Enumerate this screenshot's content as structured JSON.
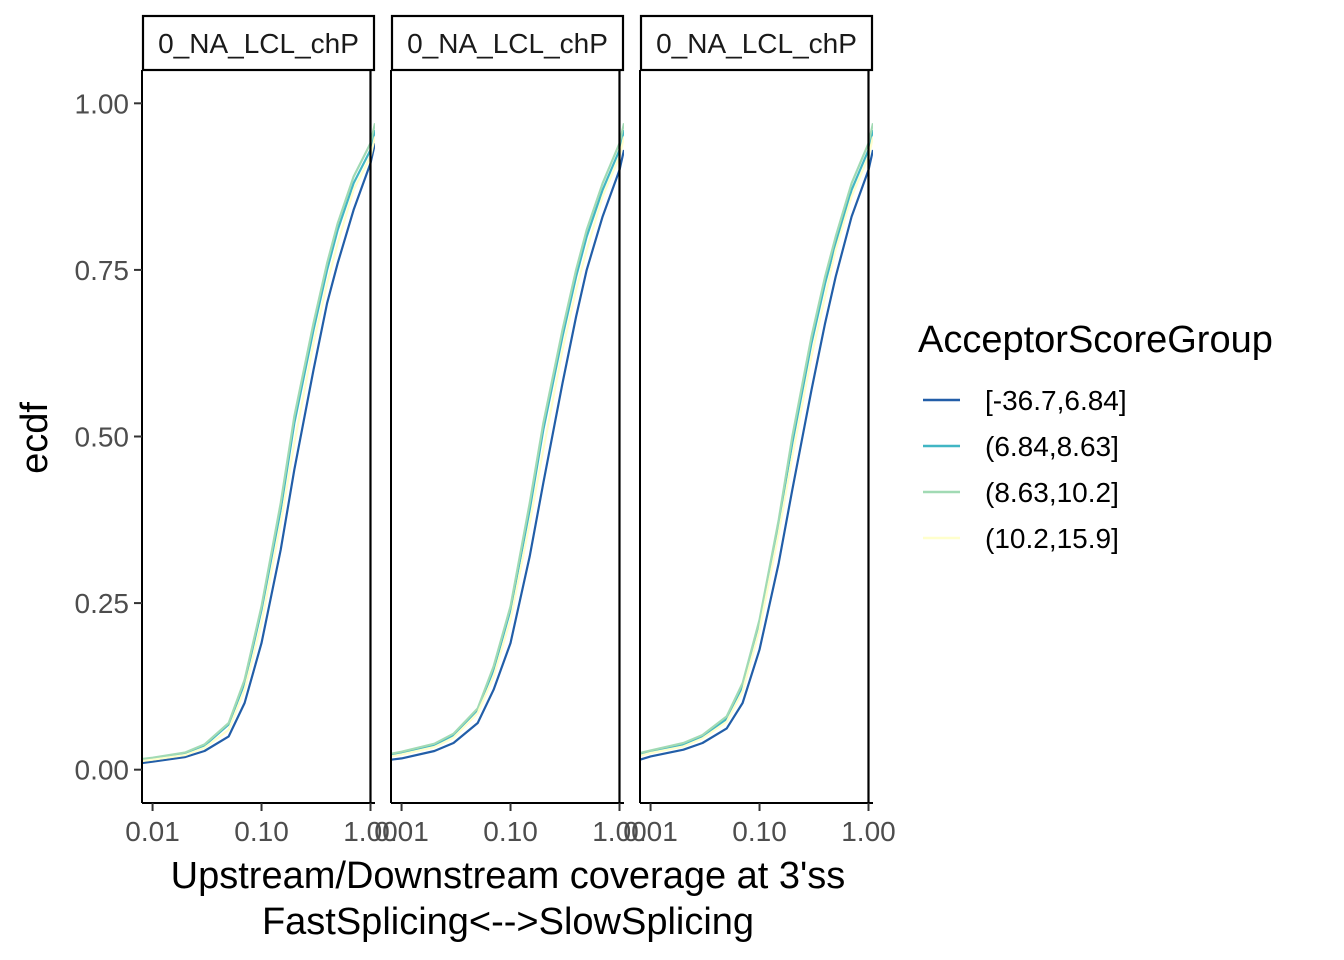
{
  "chart_data": {
    "type": "line",
    "facets": [
      "0_NA_LCL_chP",
      "0_NA_LCL_chP",
      "0_NA_LCL_chP"
    ],
    "xlabel": "Upstream/Downstream coverage at 3'ss",
    "xlabel2": "FastSplicing<-->SlowSplicing",
    "ylabel": "ecdf",
    "x_scale": "log10",
    "xlim": [
      0.008,
      1.1
    ],
    "ylim": [
      -0.05,
      1.05
    ],
    "x_ticks": [
      0.01,
      0.1,
      1.0
    ],
    "x_tick_labels": [
      "0.01",
      "0.10",
      "1.00"
    ],
    "y_ticks": [
      0,
      0.25,
      0.5,
      0.75,
      1.0
    ],
    "y_tick_labels": [
      "0.00",
      "0.25",
      "0.50",
      "0.75",
      "1.00"
    ],
    "x": [
      0.008,
      0.01,
      0.02,
      0.03,
      0.05,
      0.07,
      0.1,
      0.15,
      0.2,
      0.3,
      0.4,
      0.5,
      0.7,
      1.0,
      1.1
    ],
    "legend": {
      "title": "AcceptorScoreGroup",
      "position": "right",
      "items": [
        {
          "label": "[-36.7,6.84]",
          "color": "#225ea8"
        },
        {
          "label": "(6.84,8.63]",
          "color": "#41b6c4"
        },
        {
          "label": "(8.63,10.2]",
          "color": "#a1dab4"
        },
        {
          "label": "(10.2,15.9]",
          "color": "#ffffcc"
        }
      ]
    },
    "panels": [
      {
        "series": [
          {
            "name": "[-36.7,6.84]",
            "values": [
              0.01,
              0.012,
              0.019,
              0.028,
              0.05,
              0.1,
              0.19,
              0.33,
              0.45,
              0.6,
              0.7,
              0.76,
              0.84,
              0.91,
              0.94
            ]
          },
          {
            "name": "(6.84,8.63]",
            "values": [
              0.015,
              0.017,
              0.025,
              0.036,
              0.068,
              0.13,
              0.24,
              0.39,
              0.52,
              0.66,
              0.75,
              0.81,
              0.88,
              0.93,
              0.96
            ]
          },
          {
            "name": "(8.63,10.2]",
            "values": [
              0.016,
              0.018,
              0.026,
              0.038,
              0.07,
              0.135,
              0.245,
              0.4,
              0.53,
              0.67,
              0.76,
              0.82,
              0.89,
              0.94,
              0.97
            ]
          },
          {
            "name": "(10.2,15.9]",
            "values": [
              0.013,
              0.015,
              0.022,
              0.033,
              0.06,
              0.12,
              0.22,
              0.37,
              0.49,
              0.64,
              0.73,
              0.79,
              0.87,
              0.92,
              0.95
            ]
          }
        ]
      },
      {
        "series": [
          {
            "name": "[-36.7,6.84]",
            "values": [
              0.015,
              0.017,
              0.028,
              0.04,
              0.07,
              0.12,
              0.19,
              0.32,
              0.43,
              0.58,
              0.68,
              0.75,
              0.83,
              0.9,
              0.93
            ]
          },
          {
            "name": "(6.84,8.63]",
            "values": [
              0.022,
              0.025,
              0.037,
              0.052,
              0.09,
              0.15,
              0.24,
              0.39,
              0.51,
              0.65,
              0.74,
              0.8,
              0.87,
              0.93,
              0.96
            ]
          },
          {
            "name": "(8.63,10.2]",
            "values": [
              0.024,
              0.027,
              0.039,
              0.054,
              0.092,
              0.155,
              0.245,
              0.4,
              0.52,
              0.66,
              0.75,
              0.81,
              0.88,
              0.94,
              0.97
            ]
          },
          {
            "name": "(10.2,15.9]",
            "values": [
              0.02,
              0.023,
              0.034,
              0.048,
              0.085,
              0.14,
              0.225,
              0.37,
              0.48,
              0.63,
              0.72,
              0.78,
              0.86,
              0.92,
              0.95
            ]
          }
        ]
      },
      {
        "series": [
          {
            "name": "[-36.7,6.84]",
            "values": [
              0.015,
              0.02,
              0.03,
              0.04,
              0.062,
              0.1,
              0.18,
              0.31,
              0.42,
              0.57,
              0.67,
              0.74,
              0.83,
              0.9,
              0.93
            ]
          },
          {
            "name": "(6.84,8.63]",
            "values": [
              0.023,
              0.027,
              0.038,
              0.05,
              0.076,
              0.125,
              0.22,
              0.37,
              0.49,
              0.64,
              0.73,
              0.79,
              0.87,
              0.93,
              0.96
            ]
          },
          {
            "name": "(8.63,10.2]",
            "values": [
              0.025,
              0.029,
              0.04,
              0.052,
              0.08,
              0.13,
              0.225,
              0.375,
              0.5,
              0.65,
              0.74,
              0.8,
              0.88,
              0.94,
              0.97
            ]
          },
          {
            "name": "(10.2,15.9]",
            "values": [
              0.021,
              0.025,
              0.035,
              0.047,
              0.072,
              0.118,
              0.21,
              0.355,
              0.47,
              0.62,
              0.71,
              0.78,
              0.86,
              0.92,
              0.95
            ]
          }
        ]
      }
    ]
  }
}
